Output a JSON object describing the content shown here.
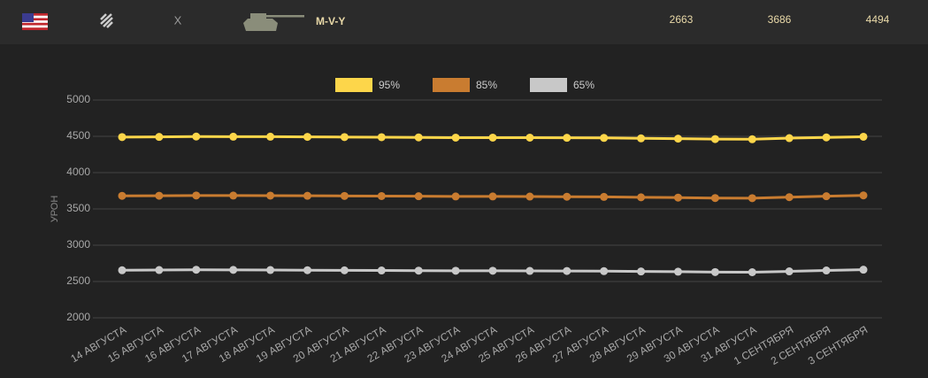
{
  "header": {
    "tier": "X",
    "tank_name": "M-V-Y",
    "stats": [
      2663,
      3686,
      4494
    ]
  },
  "chart_data": {
    "type": "line",
    "y_label": "УРОН",
    "categories": [
      "14 АВГУСТА",
      "15 АВГУСТА",
      "16 АВГУСТА",
      "17 АВГУСТА",
      "18 АВГУСТА",
      "19 АВГУСТА",
      "20 АВГУСТА",
      "21 АВГУСТА",
      "22 АВГУСТА",
      "23 АВГУСТА",
      "24 АВГУСТА",
      "25 АВГУСТА",
      "26 АВГУСТА",
      "27 АВГУСТА",
      "28 АВГУСТА",
      "29 АВГУСТА",
      "30 АВГУСТА",
      "31 АВГУСТА",
      "1 СЕНТЯБРЯ",
      "2 СЕНТЯБРЯ",
      "3 СЕНТЯБРЯ"
    ],
    "series": [
      {
        "name": "95%",
        "color": "#fdd64a",
        "values": [
          4490,
          4492,
          4497,
          4495,
          4495,
          4493,
          4490,
          4488,
          4485,
          4482,
          4482,
          4482,
          4480,
          4478,
          4472,
          4468,
          4462,
          4460,
          4475,
          4485,
          4494
        ]
      },
      {
        "name": "85%",
        "color": "#c97c30",
        "values": [
          3680,
          3682,
          3685,
          3684,
          3683,
          3681,
          3679,
          3677,
          3675,
          3672,
          3672,
          3670,
          3668,
          3666,
          3660,
          3656,
          3650,
          3648,
          3662,
          3675,
          3686
        ]
      },
      {
        "name": "65%",
        "color": "#c8c8c8",
        "values": [
          2655,
          2658,
          2662,
          2660,
          2658,
          2656,
          2654,
          2652,
          2650,
          2648,
          2648,
          2646,
          2645,
          2643,
          2638,
          2635,
          2630,
          2628,
          2640,
          2652,
          2663
        ]
      }
    ],
    "ylim": [
      2000,
      5000
    ],
    "yticks": [
      2000,
      2500,
      3000,
      3500,
      4000,
      4500,
      5000
    ],
    "grid": true
  }
}
